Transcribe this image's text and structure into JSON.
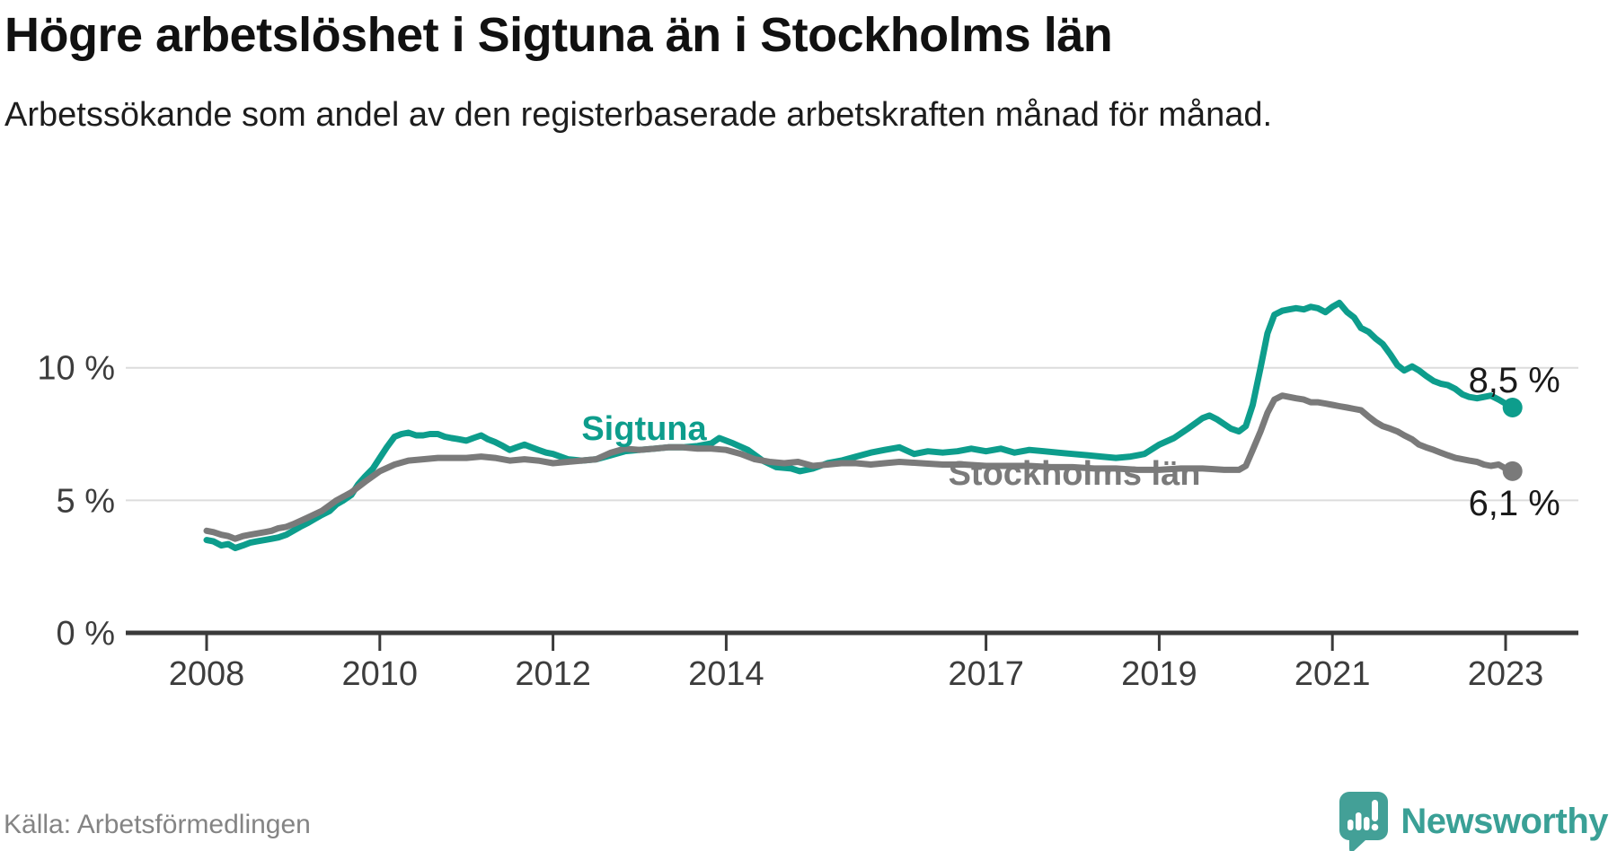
{
  "header": {
    "title": "Högre arbetslöshet i Sigtuna än i Stockholms län",
    "subtitle": "Arbetssökande som andel av den registerbaserade arbetskraften månad för månad."
  },
  "footer": {
    "source": "Källa: Arbetsförmedlingen",
    "brand": "Newsworthy"
  },
  "colors": {
    "sigtuna": "#0d9d8c",
    "stockholm": "#7a7a7a",
    "axis": "#3a3a3a",
    "grid": "#dcdcdc",
    "text": "#1a1a1a",
    "muted": "#848484",
    "brand_teal": "#3aa096"
  },
  "chart_data": {
    "type": "line",
    "title": "Högre arbetslöshet i Sigtuna än i Stockholms län",
    "subtitle": "Arbetssökande som andel av den registerbaserade arbetskraften månad för månad.",
    "xlabel": "",
    "ylabel": "",
    "xlim": [
      2007.55,
      2023.85
    ],
    "ylim": [
      0,
      13.2
    ],
    "grid": true,
    "legend_position": "inline",
    "yticks": [
      {
        "v": 0,
        "label": "0 %"
      },
      {
        "v": 5,
        "label": "5 %"
      },
      {
        "v": 10,
        "label": "10 %"
      }
    ],
    "xticks": [
      {
        "t": 2008,
        "label": "2008"
      },
      {
        "t": 2010,
        "label": "2010"
      },
      {
        "t": 2012,
        "label": "2012"
      },
      {
        "t": 2014,
        "label": "2014"
      },
      {
        "t": 2017,
        "label": "2017"
      },
      {
        "t": 2019,
        "label": "2019"
      },
      {
        "t": 2021,
        "label": "2021"
      },
      {
        "t": 2023,
        "label": "2023"
      }
    ],
    "series": [
      {
        "name": "Sigtuna",
        "color": "#0d9d8c",
        "end_value": 8.5,
        "end_label": "8,5 %",
        "points": [
          [
            2008.0,
            3.5
          ],
          [
            2008.08,
            3.45
          ],
          [
            2008.17,
            3.3
          ],
          [
            2008.25,
            3.35
          ],
          [
            2008.33,
            3.2
          ],
          [
            2008.42,
            3.3
          ],
          [
            2008.5,
            3.4
          ],
          [
            2008.58,
            3.45
          ],
          [
            2008.67,
            3.5
          ],
          [
            2008.75,
            3.55
          ],
          [
            2008.83,
            3.6
          ],
          [
            2008.92,
            3.7
          ],
          [
            2009.0,
            3.85
          ],
          [
            2009.08,
            4.0
          ],
          [
            2009.17,
            4.15
          ],
          [
            2009.25,
            4.3
          ],
          [
            2009.33,
            4.45
          ],
          [
            2009.42,
            4.6
          ],
          [
            2009.5,
            4.85
          ],
          [
            2009.58,
            5.0
          ],
          [
            2009.67,
            5.2
          ],
          [
            2009.75,
            5.6
          ],
          [
            2009.83,
            5.9
          ],
          [
            2009.92,
            6.2
          ],
          [
            2010.0,
            6.6
          ],
          [
            2010.08,
            7.0
          ],
          [
            2010.17,
            7.4
          ],
          [
            2010.25,
            7.5
          ],
          [
            2010.33,
            7.55
          ],
          [
            2010.42,
            7.45
          ],
          [
            2010.5,
            7.45
          ],
          [
            2010.58,
            7.5
          ],
          [
            2010.67,
            7.5
          ],
          [
            2010.75,
            7.4
          ],
          [
            2010.83,
            7.35
          ],
          [
            2010.92,
            7.3
          ],
          [
            2011.0,
            7.25
          ],
          [
            2011.08,
            7.35
          ],
          [
            2011.17,
            7.45
          ],
          [
            2011.25,
            7.3
          ],
          [
            2011.33,
            7.2
          ],
          [
            2011.42,
            7.05
          ],
          [
            2011.5,
            6.9
          ],
          [
            2011.58,
            7.0
          ],
          [
            2011.67,
            7.1
          ],
          [
            2011.75,
            7.0
          ],
          [
            2011.83,
            6.9
          ],
          [
            2011.92,
            6.8
          ],
          [
            2012.0,
            6.75
          ],
          [
            2012.17,
            6.55
          ],
          [
            2012.33,
            6.5
          ],
          [
            2012.5,
            6.55
          ],
          [
            2012.67,
            6.7
          ],
          [
            2012.83,
            6.85
          ],
          [
            2013.0,
            6.9
          ],
          [
            2013.17,
            6.95
          ],
          [
            2013.33,
            7.0
          ],
          [
            2013.5,
            7.0
          ],
          [
            2013.67,
            7.05
          ],
          [
            2013.83,
            7.15
          ],
          [
            2013.92,
            7.35
          ],
          [
            2014.08,
            7.15
          ],
          [
            2014.25,
            6.9
          ],
          [
            2014.42,
            6.5
          ],
          [
            2014.58,
            6.25
          ],
          [
            2014.75,
            6.2
          ],
          [
            2014.85,
            6.1
          ],
          [
            2015.0,
            6.2
          ],
          [
            2015.17,
            6.4
          ],
          [
            2015.33,
            6.5
          ],
          [
            2015.5,
            6.65
          ],
          [
            2015.67,
            6.8
          ],
          [
            2015.83,
            6.9
          ],
          [
            2016.0,
            7.0
          ],
          [
            2016.17,
            6.75
          ],
          [
            2016.33,
            6.85
          ],
          [
            2016.5,
            6.8
          ],
          [
            2016.67,
            6.85
          ],
          [
            2016.83,
            6.95
          ],
          [
            2017.0,
            6.85
          ],
          [
            2017.17,
            6.95
          ],
          [
            2017.33,
            6.8
          ],
          [
            2017.5,
            6.9
          ],
          [
            2017.67,
            6.85
          ],
          [
            2017.83,
            6.8
          ],
          [
            2018.0,
            6.75
          ],
          [
            2018.17,
            6.7
          ],
          [
            2018.33,
            6.65
          ],
          [
            2018.5,
            6.6
          ],
          [
            2018.67,
            6.65
          ],
          [
            2018.83,
            6.75
          ],
          [
            2019.0,
            7.1
          ],
          [
            2019.17,
            7.35
          ],
          [
            2019.33,
            7.7
          ],
          [
            2019.5,
            8.1
          ],
          [
            2019.58,
            8.2
          ],
          [
            2019.67,
            8.05
          ],
          [
            2019.83,
            7.7
          ],
          [
            2019.92,
            7.6
          ],
          [
            2020.0,
            7.8
          ],
          [
            2020.08,
            8.6
          ],
          [
            2020.17,
            10.0
          ],
          [
            2020.25,
            11.3
          ],
          [
            2020.33,
            12.0
          ],
          [
            2020.42,
            12.15
          ],
          [
            2020.5,
            12.2
          ],
          [
            2020.58,
            12.25
          ],
          [
            2020.67,
            12.2
          ],
          [
            2020.75,
            12.3
          ],
          [
            2020.83,
            12.25
          ],
          [
            2020.92,
            12.1
          ],
          [
            2021.0,
            12.3
          ],
          [
            2021.08,
            12.45
          ],
          [
            2021.17,
            12.1
          ],
          [
            2021.25,
            11.9
          ],
          [
            2021.33,
            11.5
          ],
          [
            2021.42,
            11.35
          ],
          [
            2021.5,
            11.1
          ],
          [
            2021.58,
            10.9
          ],
          [
            2021.67,
            10.5
          ],
          [
            2021.75,
            10.1
          ],
          [
            2021.83,
            9.9
          ],
          [
            2021.92,
            10.05
          ],
          [
            2022.0,
            9.9
          ],
          [
            2022.08,
            9.7
          ],
          [
            2022.17,
            9.5
          ],
          [
            2022.25,
            9.4
          ],
          [
            2022.33,
            9.35
          ],
          [
            2022.42,
            9.2
          ],
          [
            2022.5,
            9.0
          ],
          [
            2022.58,
            8.9
          ],
          [
            2022.67,
            8.85
          ],
          [
            2022.75,
            8.9
          ],
          [
            2022.83,
            8.95
          ],
          [
            2022.92,
            8.8
          ],
          [
            2023.0,
            8.65
          ],
          [
            2023.08,
            8.5
          ]
        ]
      },
      {
        "name": "Stockholms län",
        "color": "#7a7a7a",
        "end_value": 6.1,
        "end_label": "6,1 %",
        "points": [
          [
            2008.0,
            3.85
          ],
          [
            2008.08,
            3.8
          ],
          [
            2008.17,
            3.7
          ],
          [
            2008.25,
            3.65
          ],
          [
            2008.33,
            3.55
          ],
          [
            2008.42,
            3.65
          ],
          [
            2008.5,
            3.7
          ],
          [
            2008.58,
            3.75
          ],
          [
            2008.67,
            3.8
          ],
          [
            2008.75,
            3.85
          ],
          [
            2008.83,
            3.95
          ],
          [
            2008.92,
            4.0
          ],
          [
            2009.0,
            4.1
          ],
          [
            2009.17,
            4.35
          ],
          [
            2009.33,
            4.6
          ],
          [
            2009.5,
            5.0
          ],
          [
            2009.67,
            5.3
          ],
          [
            2009.83,
            5.7
          ],
          [
            2010.0,
            6.1
          ],
          [
            2010.17,
            6.35
          ],
          [
            2010.33,
            6.5
          ],
          [
            2010.5,
            6.55
          ],
          [
            2010.67,
            6.6
          ],
          [
            2010.83,
            6.6
          ],
          [
            2011.0,
            6.6
          ],
          [
            2011.17,
            6.65
          ],
          [
            2011.33,
            6.6
          ],
          [
            2011.5,
            6.5
          ],
          [
            2011.67,
            6.55
          ],
          [
            2011.83,
            6.5
          ],
          [
            2012.0,
            6.4
          ],
          [
            2012.17,
            6.45
          ],
          [
            2012.33,
            6.5
          ],
          [
            2012.5,
            6.55
          ],
          [
            2012.67,
            6.8
          ],
          [
            2012.83,
            6.95
          ],
          [
            2013.0,
            6.9
          ],
          [
            2013.17,
            6.95
          ],
          [
            2013.33,
            7.0
          ],
          [
            2013.5,
            7.0
          ],
          [
            2013.67,
            6.95
          ],
          [
            2013.83,
            6.95
          ],
          [
            2014.0,
            6.9
          ],
          [
            2014.17,
            6.75
          ],
          [
            2014.33,
            6.55
          ],
          [
            2014.5,
            6.45
          ],
          [
            2014.67,
            6.4
          ],
          [
            2014.83,
            6.45
          ],
          [
            2015.0,
            6.3
          ],
          [
            2015.17,
            6.35
          ],
          [
            2015.33,
            6.4
          ],
          [
            2015.5,
            6.4
          ],
          [
            2015.67,
            6.35
          ],
          [
            2015.83,
            6.4
          ],
          [
            2016.0,
            6.45
          ],
          [
            2016.25,
            6.4
          ],
          [
            2016.5,
            6.35
          ],
          [
            2016.75,
            6.35
          ],
          [
            2017.0,
            6.3
          ],
          [
            2017.25,
            6.3
          ],
          [
            2017.5,
            6.3
          ],
          [
            2017.75,
            6.25
          ],
          [
            2018.0,
            6.25
          ],
          [
            2018.25,
            6.2
          ],
          [
            2018.5,
            6.2
          ],
          [
            2018.75,
            6.15
          ],
          [
            2019.0,
            6.15
          ],
          [
            2019.25,
            6.2
          ],
          [
            2019.5,
            6.2
          ],
          [
            2019.75,
            6.15
          ],
          [
            2019.92,
            6.15
          ],
          [
            2020.0,
            6.3
          ],
          [
            2020.08,
            6.9
          ],
          [
            2020.17,
            7.6
          ],
          [
            2020.25,
            8.3
          ],
          [
            2020.33,
            8.8
          ],
          [
            2020.42,
            8.95
          ],
          [
            2020.5,
            8.9
          ],
          [
            2020.58,
            8.85
          ],
          [
            2020.67,
            8.8
          ],
          [
            2020.75,
            8.7
          ],
          [
            2020.83,
            8.7
          ],
          [
            2020.92,
            8.65
          ],
          [
            2021.0,
            8.6
          ],
          [
            2021.08,
            8.55
          ],
          [
            2021.17,
            8.5
          ],
          [
            2021.25,
            8.45
          ],
          [
            2021.33,
            8.4
          ],
          [
            2021.42,
            8.15
          ],
          [
            2021.5,
            7.95
          ],
          [
            2021.58,
            7.8
          ],
          [
            2021.67,
            7.7
          ],
          [
            2021.75,
            7.6
          ],
          [
            2021.83,
            7.45
          ],
          [
            2021.92,
            7.3
          ],
          [
            2022.0,
            7.1
          ],
          [
            2022.08,
            7.0
          ],
          [
            2022.17,
            6.9
          ],
          [
            2022.25,
            6.8
          ],
          [
            2022.33,
            6.7
          ],
          [
            2022.42,
            6.6
          ],
          [
            2022.5,
            6.55
          ],
          [
            2022.58,
            6.5
          ],
          [
            2022.67,
            6.45
          ],
          [
            2022.75,
            6.35
          ],
          [
            2022.83,
            6.3
          ],
          [
            2022.92,
            6.35
          ],
          [
            2023.0,
            6.2
          ],
          [
            2023.08,
            6.1
          ]
        ]
      }
    ]
  }
}
